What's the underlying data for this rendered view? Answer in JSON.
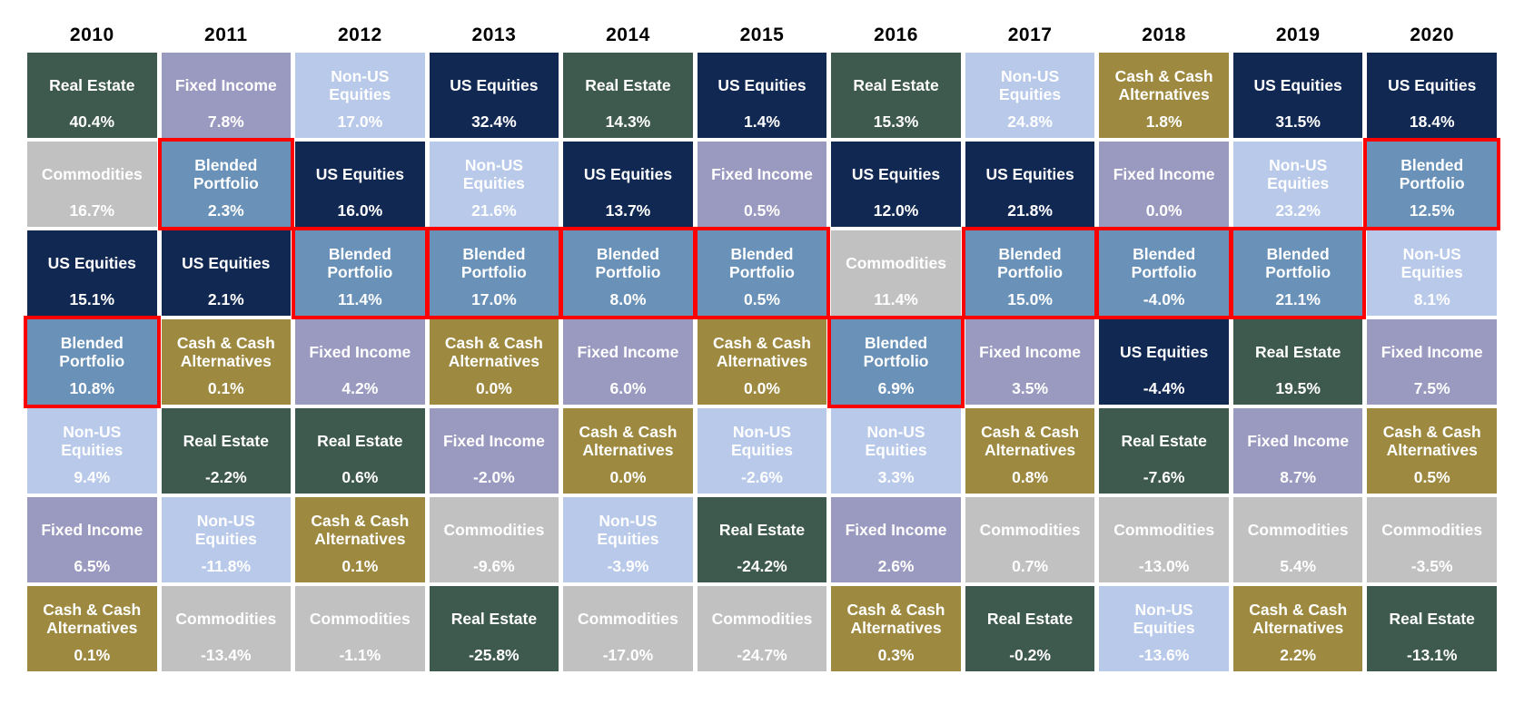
{
  "colors": {
    "highlight_border": "#fe0000",
    "cell_text": "#ffffff",
    "year_text": "#000000",
    "background": "#ffffff"
  },
  "chart_data": {
    "type": "heatmap",
    "title": "",
    "description": "Annual asset class returns ranked best-to-worst per year; Blended Portfolio cells outlined in red",
    "legend_position": "none",
    "categories": {
      "Real Estate": {
        "color": "#3e594e"
      },
      "Fixed Income": {
        "color": "#9a99bf"
      },
      "Non-US Equities": {
        "color": "#b8c9e9"
      },
      "US Equities": {
        "color": "#112853"
      },
      "Commodities": {
        "color": "#c2c1c1"
      },
      "Blended Portfolio": {
        "color": "#6a92b8"
      },
      "Cash & Cash Alternatives": {
        "color": "#9d893f"
      }
    },
    "columns": [
      {
        "year": "2010",
        "cells": [
          {
            "asset": "Real Estate",
            "value": "40.4%",
            "highlighted": false
          },
          {
            "asset": "Commodities",
            "value": "16.7%",
            "highlighted": false
          },
          {
            "asset": "US Equities",
            "value": "15.1%",
            "highlighted": false
          },
          {
            "asset": "Blended Portfolio",
            "value": "10.8%",
            "highlighted": true
          },
          {
            "asset": "Non-US Equities",
            "value": "9.4%",
            "highlighted": false
          },
          {
            "asset": "Fixed Income",
            "value": "6.5%",
            "highlighted": false
          },
          {
            "asset": "Cash & Cash Alternatives",
            "value": "0.1%",
            "highlighted": false
          }
        ]
      },
      {
        "year": "2011",
        "cells": [
          {
            "asset": "Fixed Income",
            "value": "7.8%",
            "highlighted": false
          },
          {
            "asset": "Blended Portfolio",
            "value": "2.3%",
            "highlighted": true
          },
          {
            "asset": "US Equities",
            "value": "2.1%",
            "highlighted": false
          },
          {
            "asset": "Cash & Cash Alternatives",
            "value": "0.1%",
            "highlighted": false
          },
          {
            "asset": "Real Estate",
            "value": "-2.2%",
            "highlighted": false
          },
          {
            "asset": "Non-US Equities",
            "value": "-11.8%",
            "highlighted": false
          },
          {
            "asset": "Commodities",
            "value": "-13.4%",
            "highlighted": false
          }
        ]
      },
      {
        "year": "2012",
        "cells": [
          {
            "asset": "Non-US Equities",
            "value": "17.0%",
            "highlighted": false
          },
          {
            "asset": "US Equities",
            "value": "16.0%",
            "highlighted": false
          },
          {
            "asset": "Blended Portfolio",
            "value": "11.4%",
            "highlighted": true
          },
          {
            "asset": "Fixed Income",
            "value": "4.2%",
            "highlighted": false
          },
          {
            "asset": "Real Estate",
            "value": "0.6%",
            "highlighted": false
          },
          {
            "asset": "Cash & Cash Alternatives",
            "value": "0.1%",
            "highlighted": false
          },
          {
            "asset": "Commodities",
            "value": "-1.1%",
            "highlighted": false
          }
        ]
      },
      {
        "year": "2013",
        "cells": [
          {
            "asset": "US Equities",
            "value": "32.4%",
            "highlighted": false
          },
          {
            "asset": "Non-US Equities",
            "value": "21.6%",
            "highlighted": false
          },
          {
            "asset": "Blended Portfolio",
            "value": "17.0%",
            "highlighted": true
          },
          {
            "asset": "Cash & Cash Alternatives",
            "value": "0.0%",
            "highlighted": false
          },
          {
            "asset": "Fixed Income",
            "value": "-2.0%",
            "highlighted": false
          },
          {
            "asset": "Commodities",
            "value": "-9.6%",
            "highlighted": false
          },
          {
            "asset": "Real Estate",
            "value": "-25.8%",
            "highlighted": false
          }
        ]
      },
      {
        "year": "2014",
        "cells": [
          {
            "asset": "Real Estate",
            "value": "14.3%",
            "highlighted": false
          },
          {
            "asset": "US Equities",
            "value": "13.7%",
            "highlighted": false
          },
          {
            "asset": "Blended Portfolio",
            "value": "8.0%",
            "highlighted": true
          },
          {
            "asset": "Fixed Income",
            "value": "6.0%",
            "highlighted": false
          },
          {
            "asset": "Cash & Cash Alternatives",
            "value": "0.0%",
            "highlighted": false
          },
          {
            "asset": "Non-US Equities",
            "value": "-3.9%",
            "highlighted": false
          },
          {
            "asset": "Commodities",
            "value": "-17.0%",
            "highlighted": false
          }
        ]
      },
      {
        "year": "2015",
        "cells": [
          {
            "asset": "US Equities",
            "value": "1.4%",
            "highlighted": false
          },
          {
            "asset": "Fixed Income",
            "value": "0.5%",
            "highlighted": false
          },
          {
            "asset": "Blended Portfolio",
            "value": "0.5%",
            "highlighted": true
          },
          {
            "asset": "Cash & Cash Alternatives",
            "value": "0.0%",
            "highlighted": false
          },
          {
            "asset": "Non-US Equities",
            "value": "-2.6%",
            "highlighted": false
          },
          {
            "asset": "Real Estate",
            "value": "-24.2%",
            "highlighted": false
          },
          {
            "asset": "Commodities",
            "value": "-24.7%",
            "highlighted": false
          }
        ]
      },
      {
        "year": "2016",
        "cells": [
          {
            "asset": "Real Estate",
            "value": "15.3%",
            "highlighted": false
          },
          {
            "asset": "US Equities",
            "value": "12.0%",
            "highlighted": false
          },
          {
            "asset": "Commodities",
            "value": "11.4%",
            "highlighted": false
          },
          {
            "asset": "Blended Portfolio",
            "value": "6.9%",
            "highlighted": true
          },
          {
            "asset": "Non-US Equities",
            "value": "3.3%",
            "highlighted": false
          },
          {
            "asset": "Fixed Income",
            "value": "2.6%",
            "highlighted": false
          },
          {
            "asset": "Cash & Cash Alternatives",
            "value": "0.3%",
            "highlighted": false
          }
        ]
      },
      {
        "year": "2017",
        "cells": [
          {
            "asset": "Non-US Equities",
            "value": "24.8%",
            "highlighted": false
          },
          {
            "asset": "US Equities",
            "value": "21.8%",
            "highlighted": false
          },
          {
            "asset": "Blended Portfolio",
            "value": "15.0%",
            "highlighted": true
          },
          {
            "asset": "Fixed Income",
            "value": "3.5%",
            "highlighted": false
          },
          {
            "asset": "Cash & Cash Alternatives",
            "value": "0.8%",
            "highlighted": false
          },
          {
            "asset": "Commodities",
            "value": "0.7%",
            "highlighted": false
          },
          {
            "asset": "Real Estate",
            "value": "-0.2%",
            "highlighted": false
          }
        ]
      },
      {
        "year": "2018",
        "cells": [
          {
            "asset": "Cash & Cash Alternatives",
            "value": "1.8%",
            "highlighted": false
          },
          {
            "asset": "Fixed Income",
            "value": "0.0%",
            "highlighted": false
          },
          {
            "asset": "Blended Portfolio",
            "value": "-4.0%",
            "highlighted": true
          },
          {
            "asset": "US Equities",
            "value": "-4.4%",
            "highlighted": false
          },
          {
            "asset": "Real Estate",
            "value": "-7.6%",
            "highlighted": false
          },
          {
            "asset": "Commodities",
            "value": "-13.0%",
            "highlighted": false
          },
          {
            "asset": "Non-US Equities",
            "value": "-13.6%",
            "highlighted": false
          }
        ]
      },
      {
        "year": "2019",
        "cells": [
          {
            "asset": "US Equities",
            "value": "31.5%",
            "highlighted": false
          },
          {
            "asset": "Non-US Equities",
            "value": "23.2%",
            "highlighted": false
          },
          {
            "asset": "Blended Portfolio",
            "value": "21.1%",
            "highlighted": true
          },
          {
            "asset": "Real Estate",
            "value": "19.5%",
            "highlighted": false
          },
          {
            "asset": "Fixed Income",
            "value": "8.7%",
            "highlighted": false
          },
          {
            "asset": "Commodities",
            "value": "5.4%",
            "highlighted": false
          },
          {
            "asset": "Cash & Cash Alternatives",
            "value": "2.2%",
            "highlighted": false
          }
        ]
      },
      {
        "year": "2020",
        "cells": [
          {
            "asset": "US Equities",
            "value": "18.4%",
            "highlighted": false
          },
          {
            "asset": "Blended Portfolio",
            "value": "12.5%",
            "highlighted": true
          },
          {
            "asset": "Non-US Equities",
            "value": "8.1%",
            "highlighted": false
          },
          {
            "asset": "Fixed Income",
            "value": "7.5%",
            "highlighted": false
          },
          {
            "asset": "Cash & Cash Alternatives",
            "value": "0.5%",
            "highlighted": false
          },
          {
            "asset": "Commodities",
            "value": "-3.5%",
            "highlighted": false
          },
          {
            "asset": "Real Estate",
            "value": "-13.1%",
            "highlighted": false
          }
        ]
      }
    ]
  }
}
